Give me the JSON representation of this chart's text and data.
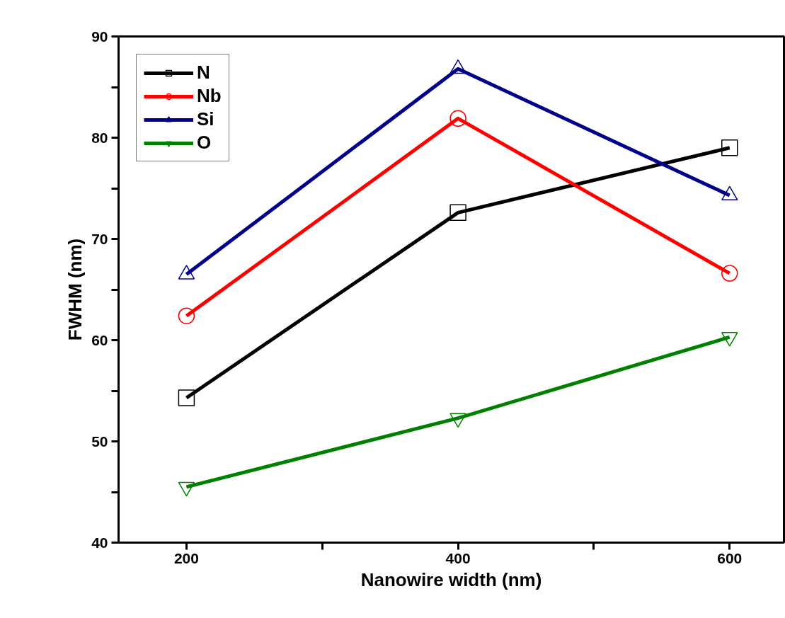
{
  "chart_data": {
    "type": "line",
    "xlabel": "Nanowire width (nm)",
    "ylabel": "FWHM (nm)",
    "x": [
      200,
      400,
      600
    ],
    "series": [
      {
        "name": "N",
        "color": "#000000",
        "marker": "square",
        "values": [
          54.3,
          72.6,
          79.0
        ]
      },
      {
        "name": "Nb",
        "color": "#ff0000",
        "marker": "circle",
        "values": [
          62.4,
          81.9,
          66.6
        ]
      },
      {
        "name": "Si",
        "color": "#00008b",
        "marker": "triangle",
        "values": [
          66.5,
          86.8,
          74.3
        ]
      },
      {
        "name": "O",
        "color": "#008000",
        "marker": "triangle_down",
        "values": [
          45.5,
          52.3,
          60.3
        ]
      }
    ],
    "xlim": [
      150,
      640
    ],
    "xticks": [
      200,
      {
        "value": 300,
        "label": null
      },
      400,
      {
        "value": 500,
        "label": null
      },
      600
    ],
    "ylim": [
      40,
      90
    ],
    "yticks": [
      40,
      {
        "value": 45,
        "label": null
      },
      50,
      {
        "value": 55,
        "label": null
      },
      60,
      {
        "value": 65,
        "label": null
      },
      70,
      {
        "value": 75,
        "label": null
      },
      80,
      {
        "value": 85,
        "label": null
      },
      90
    ],
    "grid": false,
    "legend": "top left",
    "line_style": "solid"
  }
}
